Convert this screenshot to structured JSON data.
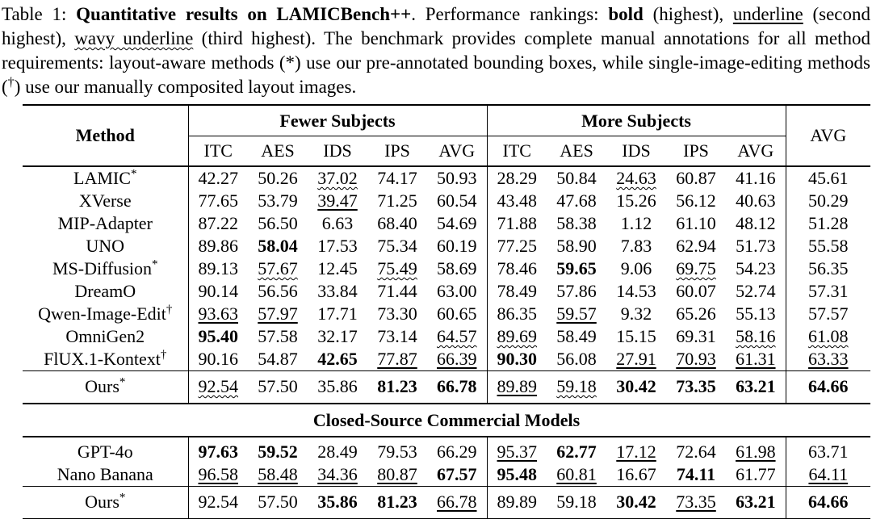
{
  "colors": {
    "text": "#000000",
    "background": "#ffffff",
    "rule": "#000000"
  },
  "caption": {
    "segments": [
      {
        "t": "Table 1: ",
        "s": "n"
      },
      {
        "t": "Quantitative results on LAMICBench++",
        "s": "b"
      },
      {
        "t": ". Performance rankings: ",
        "s": "n"
      },
      {
        "t": "bold",
        "s": "b"
      },
      {
        "t": " (highest), ",
        "s": "n"
      },
      {
        "t": "underline",
        "s": "u"
      },
      {
        "t": " (second highest), ",
        "s": "n"
      },
      {
        "t": "wavy underline",
        "s": "w"
      },
      {
        "t": " (third highest). The benchmark provides complete manual annotations for all method requirements: layout-aware methods (*) use our pre-annotated bounding boxes, while single-image-editing methods (",
        "s": "n"
      },
      {
        "t": "†",
        "s": "sup"
      },
      {
        "t": ") use our manually composited layout images.",
        "s": "n"
      }
    ]
  },
  "table": {
    "header": {
      "method": "Method",
      "group1": "Fewer Subjects",
      "group2": "More Subjects",
      "avg": "AVG",
      "metrics": [
        "ITC",
        "AES",
        "IDS",
        "IPS",
        "AVG"
      ]
    },
    "sections": [
      {
        "type": "rows",
        "rows": [
          {
            "method": "LAMIC",
            "sup": "*",
            "cls": "",
            "values": [
              "42.27",
              "50.26",
              "37.02",
              "74.17",
              "50.93",
              "28.29",
              "50.84",
              "24.63",
              "60.87",
              "41.16",
              "45.61"
            ],
            "styles": [
              "",
              "",
              "w",
              "",
              "",
              "",
              "",
              "w",
              "",
              "",
              ""
            ]
          },
          {
            "method": "XVerse",
            "sup": "",
            "cls": "",
            "values": [
              "77.65",
              "53.79",
              "39.47",
              "71.25",
              "60.54",
              "43.48",
              "47.68",
              "15.26",
              "56.12",
              "40.63",
              "50.29"
            ],
            "styles": [
              "",
              "",
              "u",
              "",
              "",
              "",
              "",
              "",
              "",
              "",
              ""
            ]
          },
          {
            "method": "MIP-Adapter",
            "sup": "",
            "cls": "",
            "values": [
              "87.22",
              "56.50",
              "6.63",
              "68.40",
              "54.69",
              "71.88",
              "58.38",
              "1.12",
              "61.10",
              "48.12",
              "51.28"
            ],
            "styles": [
              "",
              "",
              "",
              "",
              "",
              "",
              "",
              "",
              "",
              "",
              ""
            ]
          },
          {
            "method": "UNO",
            "sup": "",
            "cls": "",
            "values": [
              "89.86",
              "58.04",
              "17.53",
              "75.34",
              "60.19",
              "77.25",
              "58.90",
              "7.83",
              "62.94",
              "51.73",
              "55.58"
            ],
            "styles": [
              "",
              "b",
              "",
              "",
              "",
              "",
              "",
              "",
              "",
              "",
              ""
            ]
          },
          {
            "method": "MS-Diffusion",
            "sup": "*",
            "cls": "",
            "values": [
              "89.13",
              "57.67",
              "12.45",
              "75.49",
              "58.69",
              "78.46",
              "59.65",
              "9.06",
              "69.75",
              "54.23",
              "56.35"
            ],
            "styles": [
              "",
              "w",
              "",
              "w",
              "",
              "",
              "b",
              "",
              "w",
              "",
              ""
            ]
          },
          {
            "method": "DreamO",
            "sup": "",
            "cls": "",
            "values": [
              "90.14",
              "56.56",
              "33.84",
              "71.44",
              "63.00",
              "78.49",
              "57.86",
              "14.53",
              "60.07",
              "52.74",
              "57.31"
            ],
            "styles": [
              "",
              "",
              "",
              "",
              "",
              "",
              "",
              "",
              "",
              "",
              ""
            ]
          },
          {
            "method": "Qwen-Image-Edit",
            "sup": "†",
            "cls": "",
            "values": [
              "93.63",
              "57.97",
              "17.71",
              "73.30",
              "60.65",
              "86.35",
              "59.57",
              "9.32",
              "65.26",
              "55.13",
              "57.57"
            ],
            "styles": [
              "u",
              "u",
              "",
              "",
              "",
              "",
              "u",
              "",
              "",
              "",
              ""
            ]
          },
          {
            "method": "OmniGen2",
            "sup": "",
            "cls": "",
            "values": [
              "95.40",
              "57.58",
              "32.17",
              "73.14",
              "64.57",
              "89.69",
              "58.49",
              "15.15",
              "69.31",
              "58.16",
              "61.08"
            ],
            "styles": [
              "b",
              "",
              "",
              "",
              "w",
              "w",
              "",
              "",
              "",
              "w",
              "w"
            ]
          },
          {
            "method": "FlUX.1-Kontext",
            "sup": "†",
            "cls": "",
            "values": [
              "90.16",
              "54.87",
              "42.65",
              "77.87",
              "66.39",
              "90.30",
              "56.08",
              "27.91",
              "70.93",
              "61.31",
              "63.33"
            ],
            "styles": [
              "",
              "",
              "b",
              "u",
              "u",
              "b",
              "",
              "u",
              "u",
              "u",
              "u"
            ]
          }
        ]
      },
      {
        "type": "rows",
        "rows": [
          {
            "method": "Ours",
            "sup": "*",
            "cls": "rt-thin pad",
            "values": [
              "92.54",
              "57.50",
              "35.86",
              "81.23",
              "66.78",
              "89.89",
              "59.18",
              "30.42",
              "73.35",
              "63.21",
              "64.66"
            ],
            "styles": [
              "w",
              "",
              "",
              "b",
              "b",
              "u",
              "w",
              "b",
              "b",
              "b",
              "b"
            ]
          }
        ]
      },
      {
        "type": "label",
        "text": "Closed-Source Commercial Models"
      },
      {
        "type": "rows",
        "rows": [
          {
            "method": "GPT-4o",
            "sup": "",
            "cls": "pt",
            "values": [
              "97.63",
              "59.52",
              "28.49",
              "79.53",
              "66.29",
              "95.37",
              "62.77",
              "17.12",
              "72.64",
              "61.98",
              "63.71"
            ],
            "styles": [
              "b",
              "b",
              "",
              "",
              "",
              "u",
              "b",
              "u",
              "",
              "u",
              ""
            ]
          },
          {
            "method": "Nano Banana",
            "sup": "",
            "cls": "",
            "values": [
              "96.58",
              "58.48",
              "34.36",
              "80.87",
              "67.57",
              "95.48",
              "60.81",
              "16.67",
              "74.11",
              "61.77",
              "64.11"
            ],
            "styles": [
              "u",
              "u",
              "u",
              "u",
              "b",
              "b",
              "u",
              "",
              "b",
              "",
              "u"
            ]
          }
        ]
      },
      {
        "type": "rows",
        "rows": [
          {
            "method": "Ours",
            "sup": "*",
            "cls": "rt-thin pad",
            "values": [
              "92.54",
              "57.50",
              "35.86",
              "81.23",
              "66.78",
              "89.89",
              "59.18",
              "30.42",
              "73.35",
              "63.21",
              "64.66"
            ],
            "styles": [
              "",
              "",
              "b",
              "b",
              "u",
              "",
              "",
              "b",
              "u",
              "b",
              "b"
            ]
          }
        ]
      }
    ]
  }
}
